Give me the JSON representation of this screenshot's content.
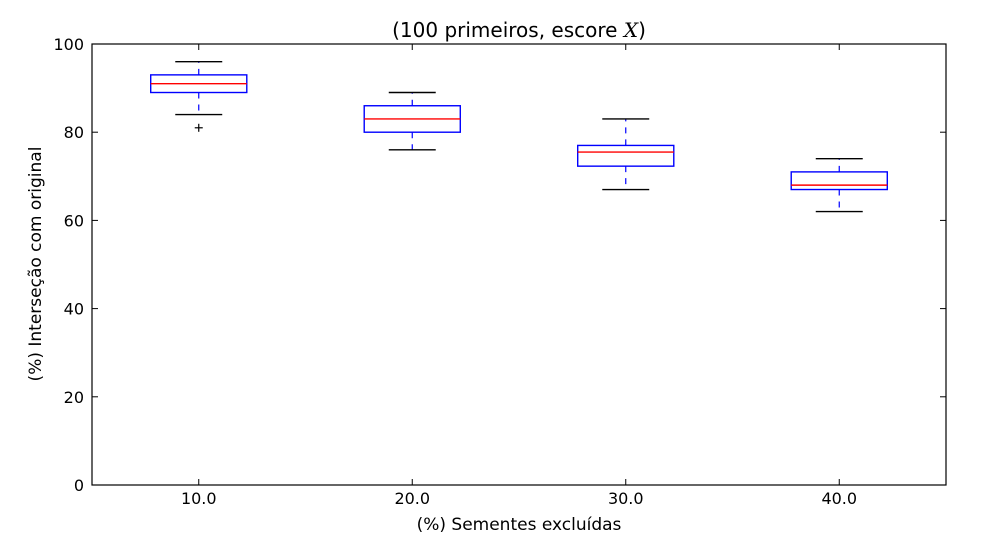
{
  "chart_data": {
    "type": "boxplot",
    "title_prefix": "(100 primeiros, escore ",
    "title_var": "X",
    "title_suffix": ")",
    "xlabel": "(%) Sementes excluídas",
    "ylabel": "(%) Interseção com original",
    "ylim": [
      0,
      100
    ],
    "yticks": [
      "0",
      "20",
      "40",
      "60",
      "80",
      "100"
    ],
    "categories": [
      "10.0",
      "20.0",
      "30.0",
      "40.0"
    ],
    "boxes": [
      {
        "whislo": 84,
        "q1": 89,
        "med": 91,
        "q3": 93,
        "whishi": 96,
        "fliers": [
          81
        ]
      },
      {
        "whislo": 76,
        "q1": 80,
        "med": 83,
        "q3": 86,
        "whishi": 89,
        "fliers": []
      },
      {
        "whislo": 67,
        "q1": 72.3,
        "med": 75.5,
        "q3": 77,
        "whishi": 83,
        "fliers": []
      },
      {
        "whislo": 62,
        "q1": 67,
        "med": 68,
        "q3": 71,
        "whishi": 74,
        "fliers": []
      }
    ],
    "colors": {
      "box": "#0000ff",
      "median": "#ff0000",
      "cap": "#000000",
      "flier": "#000000"
    },
    "grid": false,
    "legend": "none"
  }
}
